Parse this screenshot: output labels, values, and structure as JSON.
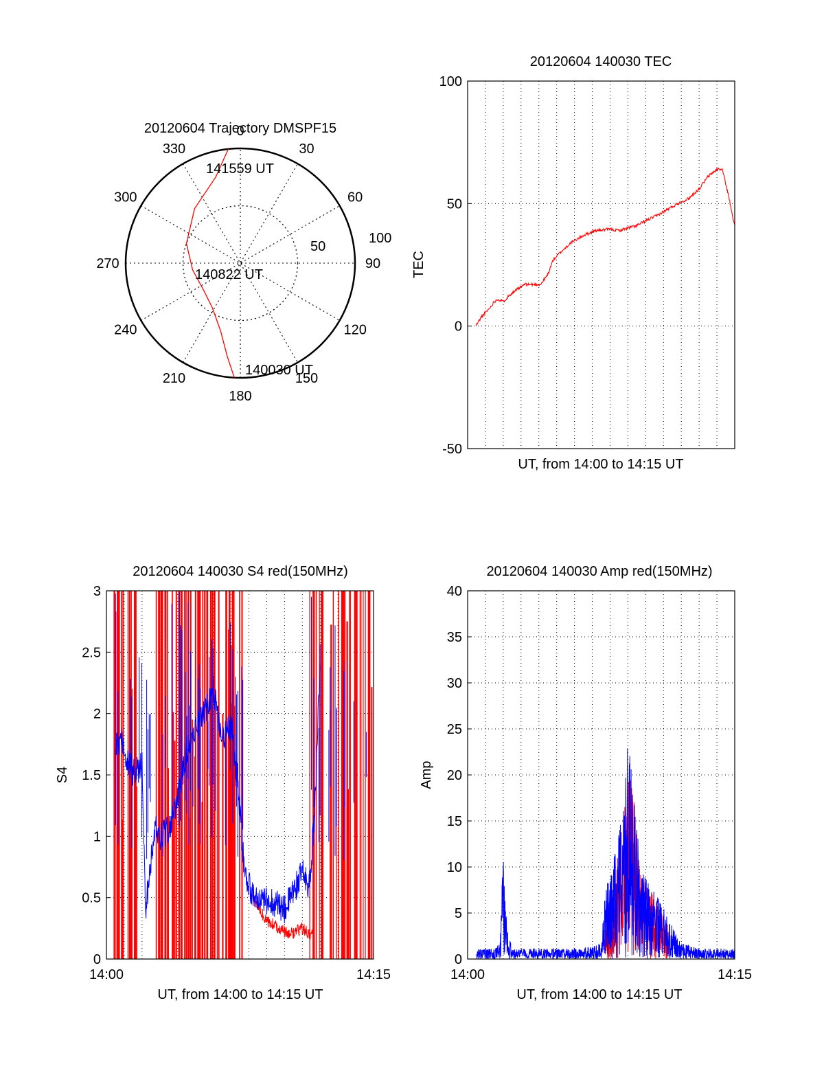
{
  "colors": {
    "red": "#ff0000",
    "blue": "#0000ff",
    "axis": "#000000",
    "grid": "#000000"
  },
  "chart_data": [
    {
      "id": "trajectory",
      "type": "polar",
      "title": "20120604 Trajectory DMSPF15",
      "angle_labels": [
        "0",
        "30",
        "60",
        "90",
        "120",
        "150",
        "180",
        "210",
        "240",
        "270",
        "300",
        "330"
      ],
      "radial_labels": [
        "50",
        "100"
      ],
      "rlim": [
        0,
        100
      ],
      "grid": true,
      "series": [
        {
          "color": "red",
          "points": [
            [
              354,
              100
            ],
            [
              344,
              78
            ],
            [
              320,
              62
            ],
            [
              290,
              50
            ],
            [
              262,
              42
            ],
            [
              232,
              40
            ],
            [
              212,
              46
            ],
            [
              196,
              62
            ],
            [
              188,
              82
            ],
            [
              183,
              100
            ]
          ]
        }
      ],
      "annotations": [
        "141559 UT",
        "140822 UT",
        "140030 UT"
      ]
    },
    {
      "id": "tec",
      "type": "line",
      "title": "20120604 140030 TEC",
      "xlabel": "UT, from 14:00 to 14:15 UT",
      "ylabel": "TEC",
      "ylim": [
        -50,
        100
      ],
      "xlim": [
        0,
        15
      ],
      "yticks": [
        "-50",
        "0",
        "50",
        "100"
      ],
      "grid": true,
      "series": [
        {
          "color": "red",
          "x": [
            0.45,
            0.8,
            1.2,
            1.5,
            1.7,
            2.0,
            2.4,
            2.8,
            3.2,
            3.6,
            4.1,
            4.5,
            4.8,
            5.2,
            5.8,
            6.5,
            7.2,
            8.0,
            8.5,
            9.0,
            9.5,
            10.0,
            10.6,
            11.2,
            11.8,
            12.4,
            13.0,
            13.5,
            14.0,
            14.3,
            14.6,
            15.0
          ],
          "y": [
            0,
            4,
            7,
            10,
            11,
            10,
            13,
            15,
            17,
            17,
            17,
            21,
            27,
            30,
            34,
            37,
            39,
            39.5,
            39,
            40,
            41,
            43,
            45,
            47.5,
            50,
            52,
            56,
            61,
            64,
            64,
            55,
            41
          ]
        }
      ]
    },
    {
      "id": "s4",
      "type": "line",
      "title": "20120604 140030 S4 red(150MHz)",
      "xlabel": "UT, from 14:00 to 14:15 UT",
      "ylabel": "S4",
      "ylim": [
        0,
        3
      ],
      "xlim": [
        0,
        15
      ],
      "xticks": [
        "14:00",
        "14:15"
      ],
      "yticks": [
        "0",
        "0.5",
        "1",
        "1.5",
        "2",
        "2.5",
        "3"
      ],
      "grid": true,
      "series": [
        {
          "color": "red",
          "x": [
            8.2,
            8.6,
            9.0,
            9.4,
            9.8,
            10.2,
            10.6,
            11.0,
            11.4,
            11.6
          ],
          "y": [
            0.5,
            0.4,
            0.3,
            0.28,
            0.25,
            0.2,
            0.22,
            0.25,
            0.2,
            0.22
          ]
        },
        {
          "color": "blue",
          "x": [
            0.5,
            0.8,
            1.2,
            1.6,
            2.0,
            2.2,
            2.5,
            2.8,
            3.0,
            3.5,
            4.0,
            4.5,
            5.0,
            5.5,
            6.0,
            6.5,
            7.0,
            7.4,
            7.7,
            8.0,
            8.3,
            8.6,
            9.0,
            9.5,
            10.0,
            10.5,
            11.0,
            11.2,
            11.4,
            11.7,
            12.0
          ],
          "y": [
            1.75,
            1.8,
            1.6,
            1.5,
            1.6,
            0.4,
            0.8,
            1.1,
            1.0,
            1.05,
            1.3,
            1.7,
            1.9,
            2.0,
            2.2,
            1.8,
            1.9,
            1.4,
            0.8,
            0.6,
            0.5,
            0.45,
            0.48,
            0.45,
            0.4,
            0.55,
            0.7,
            0.65,
            0.6,
            1.2,
            2.4
          ]
        }
      ]
    },
    {
      "id": "amp",
      "type": "line",
      "title": "20120604 140030 Amp red(150MHz)",
      "xlabel": "UT, from 14:00 to 14:15 UT",
      "ylabel": "Amp",
      "ylim": [
        0,
        40
      ],
      "xlim": [
        0,
        15
      ],
      "xticks": [
        "14:00",
        "14:15"
      ],
      "yticks": [
        "0",
        "5",
        "10",
        "15",
        "20",
        "25",
        "30",
        "35",
        "40"
      ],
      "grid": true,
      "series": [
        {
          "color": "red",
          "x": [
            7.7,
            8.0,
            8.3,
            8.6,
            8.9,
            9.2,
            9.5,
            9.8,
            10.2,
            10.6,
            11.0,
            11.3
          ],
          "y": [
            2,
            6,
            9,
            12,
            16,
            18,
            12,
            8,
            7,
            6,
            4,
            3
          ]
        },
        {
          "color": "blue",
          "x": [
            0.5,
            1.0,
            1.5,
            1.8,
            2.0,
            2.2,
            2.5,
            3.0,
            4.0,
            5.0,
            6.0,
            7.0,
            7.5,
            7.8,
            8.1,
            8.4,
            8.7,
            9.0,
            9.3,
            9.6,
            9.9,
            10.2,
            10.6,
            11.0,
            11.5,
            12.0,
            13.0,
            14.0,
            15.0
          ],
          "y": [
            1,
            1,
            1,
            1.5,
            10,
            3,
            1,
            1,
            1,
            1,
            1,
            1.2,
            1.5,
            8,
            9,
            11,
            14,
            21,
            17,
            11,
            8,
            7,
            6,
            5,
            3,
            1.5,
            1,
            1,
            1
          ]
        }
      ]
    }
  ]
}
